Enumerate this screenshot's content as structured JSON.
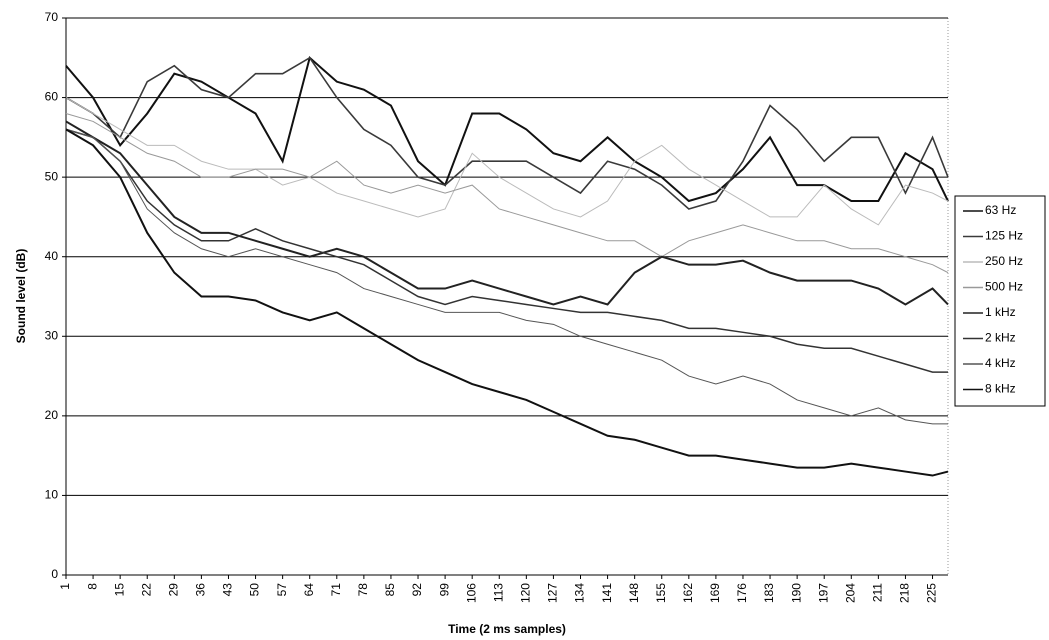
{
  "chart_data": {
    "type": "line",
    "xlabel": "Time (2 ms samples)",
    "ylabel": "Sound level (dB)",
    "x": [
      1,
      8,
      15,
      22,
      29,
      36,
      43,
      50,
      57,
      64,
      71,
      78,
      85,
      92,
      99,
      106,
      113,
      120,
      127,
      134,
      141,
      148,
      155,
      162,
      169,
      176,
      183,
      190,
      197,
      204,
      211,
      218,
      225,
      229
    ],
    "xlim": [
      1,
      229
    ],
    "xticks": [
      1,
      8,
      15,
      22,
      29,
      36,
      43,
      50,
      57,
      64,
      71,
      78,
      85,
      92,
      99,
      106,
      113,
      120,
      127,
      134,
      141,
      148,
      155,
      162,
      169,
      176,
      183,
      190,
      197,
      204,
      211,
      218,
      225
    ],
    "ylim": [
      0,
      70
    ],
    "yticks": [
      0,
      10,
      20,
      30,
      40,
      50,
      60,
      70
    ],
    "grid": true,
    "legend": "right",
    "series": [
      {
        "name": "63 Hz",
        "color": "#111111",
        "values": [
          64,
          60,
          54,
          58,
          63,
          62,
          60,
          58,
          52,
          65,
          62,
          61,
          59,
          52,
          49,
          58,
          58,
          56,
          53,
          52,
          55,
          52,
          50,
          47,
          48,
          51,
          55,
          49,
          49,
          47,
          47,
          53,
          51,
          47
        ]
      },
      {
        "name": "125 Hz",
        "color": "#3a3a3a",
        "values": [
          60,
          58,
          55,
          62,
          64,
          61,
          60,
          63,
          63,
          65,
          60,
          56,
          54,
          50,
          49,
          52,
          52,
          52,
          50,
          48,
          52,
          51,
          49,
          46,
          47,
          52,
          59,
          56,
          52,
          55,
          55,
          48,
          55,
          50
        ]
      },
      {
        "name": "250 Hz",
        "color": "#bbbbbb",
        "values": [
          60,
          58,
          56,
          54,
          54,
          52,
          51,
          51,
          49,
          50,
          48,
          47,
          46,
          45,
          46,
          53,
          50,
          48,
          46,
          45,
          47,
          52,
          54,
          51,
          49,
          47,
          45,
          45,
          49,
          46,
          44,
          49,
          48,
          47
        ]
      },
      {
        "name": "500 Hz",
        "color": "#999999",
        "values": [
          58,
          57,
          55,
          53,
          52,
          50,
          50,
          51,
          51,
          50,
          52,
          49,
          48,
          49,
          48,
          49,
          46,
          45,
          44,
          43,
          42,
          42,
          40,
          42,
          43,
          44,
          43,
          42,
          42,
          41,
          41,
          40,
          39,
          38
        ]
      },
      {
        "name": "1 kHz",
        "color": "#222222",
        "values": [
          57,
          55,
          53,
          49,
          45,
          43,
          43,
          42,
          41,
          40,
          41,
          40,
          38,
          36,
          36,
          37,
          36,
          35,
          34,
          35,
          34,
          38,
          40,
          39,
          39,
          39.5,
          38,
          37,
          37,
          37,
          36,
          34,
          36,
          34
        ]
      },
      {
        "name": "2 kHz",
        "color": "#333333",
        "values": [
          56,
          55,
          52,
          47,
          44,
          42,
          42,
          43.5,
          42,
          41,
          40,
          39,
          37,
          35,
          34,
          35,
          34.5,
          34,
          33.5,
          33,
          33,
          32.5,
          32,
          31,
          31,
          30.5,
          30,
          29,
          28.5,
          28.5,
          27.5,
          26.5,
          25.5,
          25.5
        ]
      },
      {
        "name": "4 kHz",
        "color": "#555555",
        "values": [
          56,
          55,
          52,
          46,
          43,
          41,
          40,
          41,
          40,
          39,
          38,
          36,
          35,
          34,
          33,
          33,
          33,
          32,
          31.5,
          30,
          29,
          28,
          27,
          25,
          24,
          25,
          24,
          22,
          21,
          20,
          21,
          19.5,
          19,
          19
        ]
      },
      {
        "name": "8 kHz",
        "color": "#111111",
        "values": [
          56,
          54,
          50,
          43,
          38,
          35,
          35,
          34.5,
          33,
          32,
          33,
          31,
          29,
          27,
          25.5,
          24,
          23,
          22,
          20.5,
          19,
          17.5,
          17,
          16,
          15,
          15,
          14.5,
          14,
          13.5,
          13.5,
          14,
          13.5,
          13,
          12.5,
          13
        ]
      }
    ]
  }
}
